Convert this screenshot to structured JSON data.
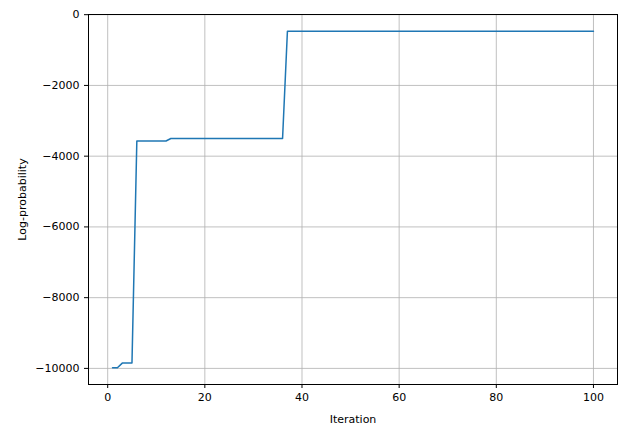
{
  "chart_data": {
    "type": "line",
    "x_label": "Iteration",
    "y_label": "Log-probability",
    "x": [
      1,
      2,
      3,
      5,
      6,
      12,
      13,
      36,
      37,
      100
    ],
    "values": [
      -9980,
      -9980,
      -9850,
      -9850,
      -3570,
      -3570,
      -3500,
      -3500,
      -470,
      -470
    ],
    "color": "#1f77b4",
    "xlim": [
      -3.95,
      104.95
    ],
    "ylim": [
      -10455,
      5
    ],
    "xticks": [
      0,
      20,
      40,
      60,
      80,
      100
    ],
    "yticks": [
      {
        "value": -10000,
        "label": "−10000"
      },
      {
        "value": -8000,
        "label": "−8000"
      },
      {
        "value": -6000,
        "label": "−6000"
      },
      {
        "value": -4000,
        "label": "−4000"
      },
      {
        "value": -2000,
        "label": "−2000"
      },
      0
    ],
    "grid": true
  }
}
